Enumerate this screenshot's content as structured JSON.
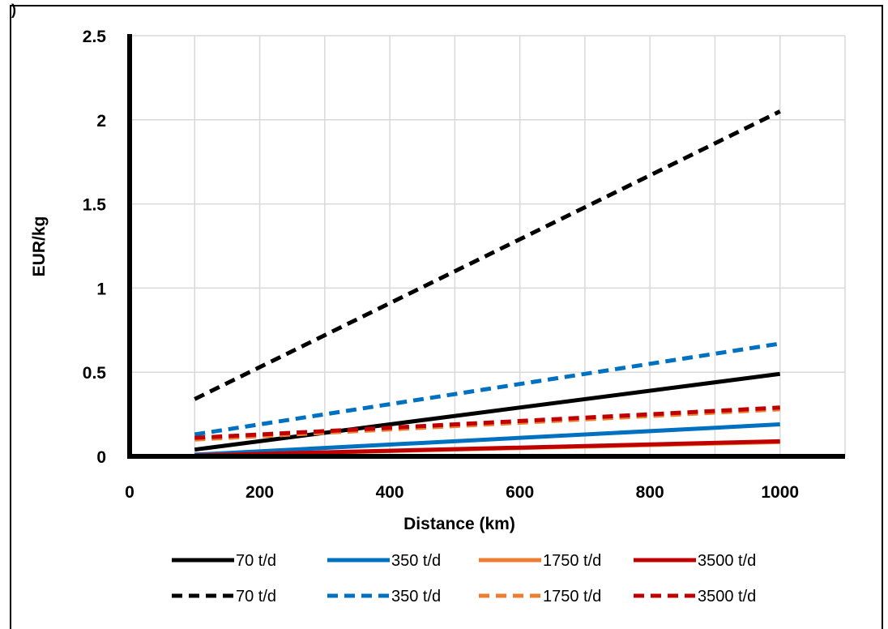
{
  "corner_mark": ")",
  "chart_data": {
    "type": "line",
    "title": "",
    "xlabel": "Distance (km)",
    "ylabel": "EUR/kg",
    "xlim": [
      0,
      1100
    ],
    "ylim": [
      0,
      2.5
    ],
    "x_ticks": [
      0,
      200,
      400,
      600,
      800,
      1000
    ],
    "x_tick_labels": [
      "0",
      "200",
      "400",
      "600",
      "800",
      "1000"
    ],
    "y_ticks": [
      0,
      0.5,
      1,
      1.5,
      2,
      2.5
    ],
    "y_tick_labels": [
      "0",
      "0.5",
      "1",
      "1.5",
      "2",
      "2.5"
    ],
    "grid": true,
    "legend_position": "bottom",
    "series": [
      {
        "name": "70 t/d",
        "style": "solid",
        "color": "#000000",
        "x": [
          100,
          1000
        ],
        "y": [
          0.04,
          0.49
        ]
      },
      {
        "name": "350 t/d",
        "style": "solid",
        "color": "#0070C0",
        "x": [
          100,
          1000
        ],
        "y": [
          0.01,
          0.19
        ]
      },
      {
        "name": "1750 t/d",
        "style": "solid",
        "color": "#ED7D31",
        "x": [
          100,
          1000
        ],
        "y": [
          0.005,
          0.085
        ]
      },
      {
        "name": "3500 t/d",
        "style": "solid",
        "color": "#C00000",
        "x": [
          100,
          1000
        ],
        "y": [
          0.005,
          0.09
        ]
      },
      {
        "name": "70 t/d",
        "style": "dashed",
        "color": "#000000",
        "x": [
          100,
          1000
        ],
        "y": [
          0.34,
          2.05
        ]
      },
      {
        "name": "350 t/d",
        "style": "dashed",
        "color": "#0070C0",
        "x": [
          100,
          1000
        ],
        "y": [
          0.13,
          0.67
        ]
      },
      {
        "name": "1750 t/d",
        "style": "dashed",
        "color": "#ED7D31",
        "x": [
          100,
          1000
        ],
        "y": [
          0.1,
          0.28
        ]
      },
      {
        "name": "3500 t/d",
        "style": "dashed",
        "color": "#C00000",
        "x": [
          100,
          1000
        ],
        "y": [
          0.11,
          0.29
        ]
      }
    ]
  }
}
